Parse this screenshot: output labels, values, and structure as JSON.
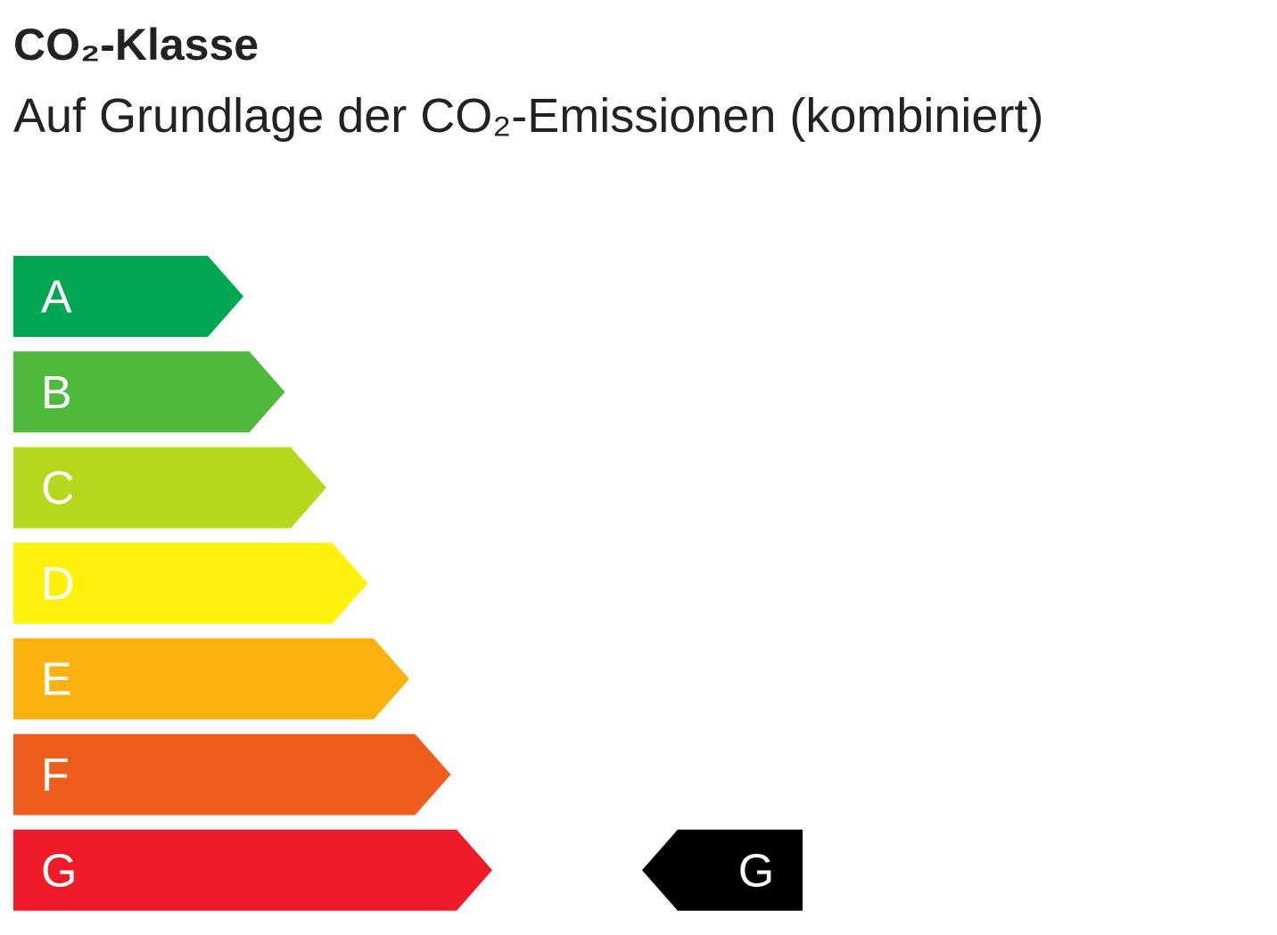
{
  "title": "CO₂-Klasse",
  "subtitle": "Auf Grundlage der CO₂-Emissionen (kombiniert)",
  "classes": [
    {
      "label": "A",
      "color": "#00a651"
    },
    {
      "label": "B",
      "color": "#50b83c"
    },
    {
      "label": "C",
      "color": "#b4d81b"
    },
    {
      "label": "D",
      "color": "#fff10a"
    },
    {
      "label": "E",
      "color": "#fbb20f"
    },
    {
      "label": "F",
      "color": "#f15d1f"
    },
    {
      "label": "G",
      "color": "#ed1c28"
    }
  ],
  "rating": "G"
}
